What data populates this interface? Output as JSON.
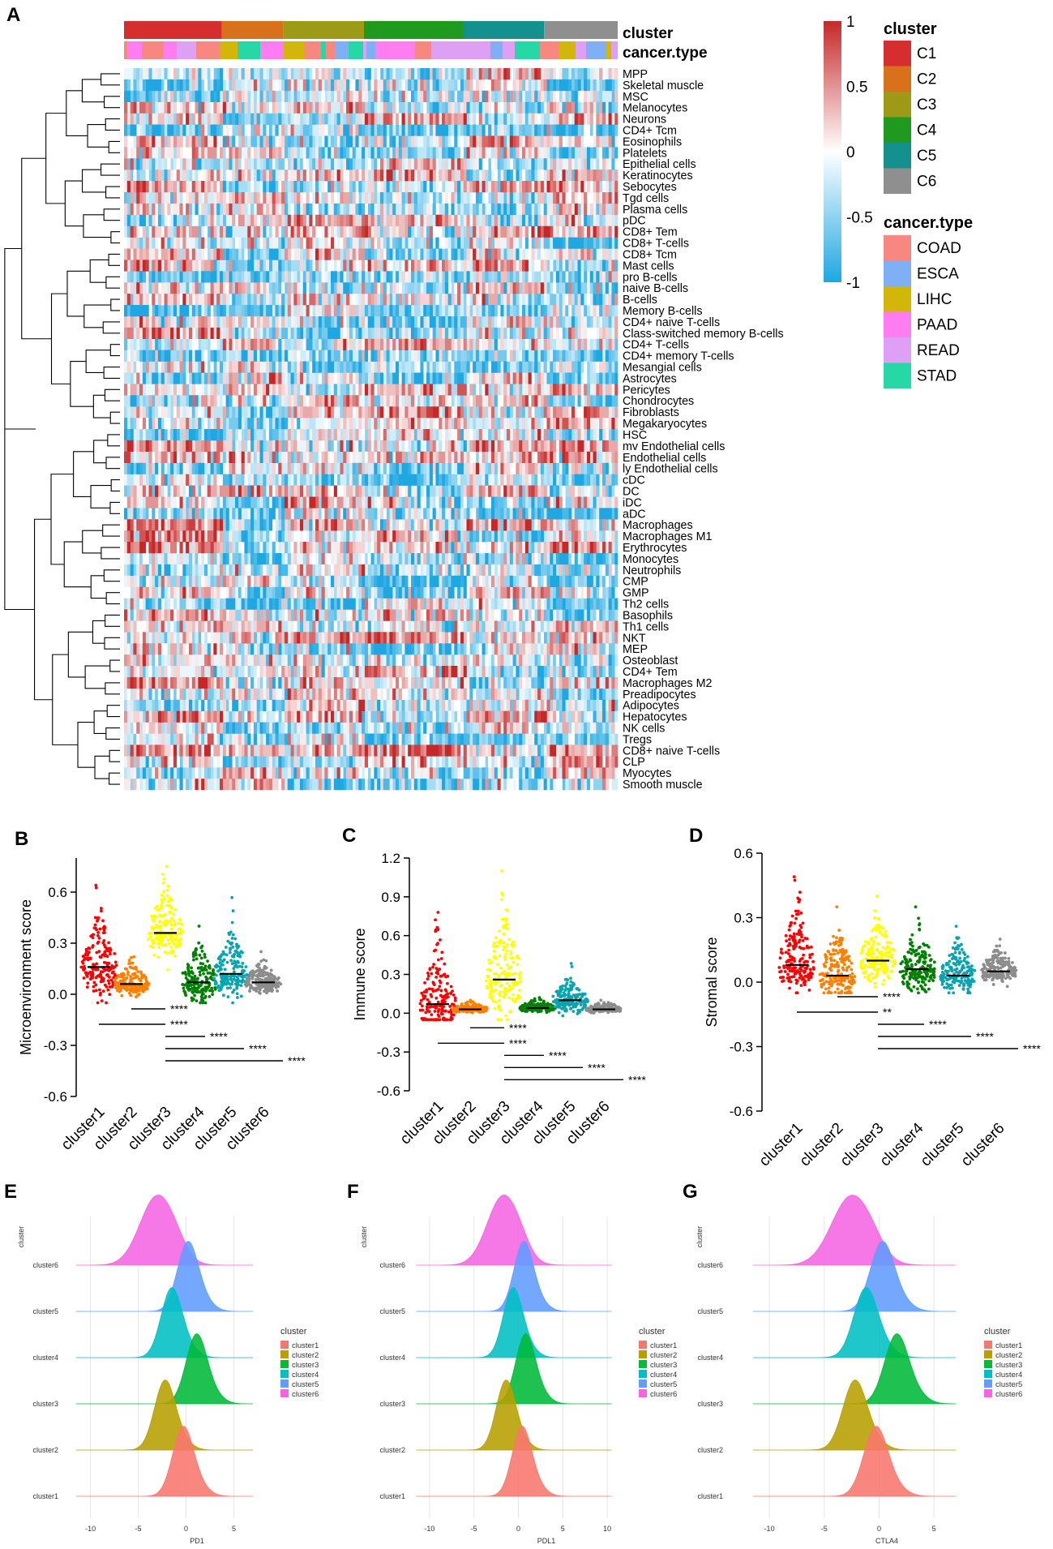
{
  "panel_letters": [
    "A",
    "B",
    "C",
    "D",
    "E",
    "F",
    "G"
  ],
  "heatmap": {
    "annotation_titles": {
      "cluster": "cluster",
      "cancer_type": "cancer.type"
    },
    "colorbar_ticks": [
      "1",
      "0.5",
      "0",
      "-0.5",
      "-1"
    ],
    "colorbar_values": [
      1,
      0.5,
      0,
      -0.5,
      -1
    ],
    "colors": {
      "high": "#c62828",
      "mid": "#ffffff",
      "low": "#1ea7e1"
    },
    "clusters": [
      {
        "name": "C1",
        "color": "#d62e2e",
        "share": 0.198
      },
      {
        "name": "C2",
        "color": "#d8711c",
        "share": 0.124
      },
      {
        "name": "C3",
        "color": "#9c9a17",
        "share": 0.164
      },
      {
        "name": "C4",
        "color": "#1f9a1f",
        "share": 0.202
      },
      {
        "name": "C5",
        "color": "#14908f",
        "share": 0.163
      },
      {
        "name": "C6",
        "color": "#8f8f8f",
        "share": 0.149
      }
    ],
    "cancer_types": [
      {
        "name": "COAD",
        "color": "#f8877f"
      },
      {
        "name": "ESCA",
        "color": "#7fb0f6"
      },
      {
        "name": "LIHC",
        "color": "#d3b60a"
      },
      {
        "name": "PAAD",
        "color": "#ff7df0"
      },
      {
        "name": "READ",
        "color": "#dda0f5"
      },
      {
        "name": "STAD",
        "color": "#25d8a6"
      }
    ],
    "rows": [
      "MPP",
      "Skeletal muscle",
      "MSC",
      "Melanocytes",
      "Neurons",
      "CD4+ Tcm",
      "Eosinophils",
      "Platelets",
      "Epithelial cells",
      "Keratinocytes",
      "Sebocytes",
      "Tgd cells",
      "Plasma cells",
      "pDC",
      "CD8+ Tem",
      "CD8+ T-cells",
      "CD8+ Tcm",
      "Mast cells",
      "pro B-cells",
      "naive B-cells",
      "B-cells",
      "Memory B-cells",
      "CD4+ naive T-cells",
      "Class-switched memory B-cells",
      "CD4+ T-cells",
      "CD4+ memory T-cells",
      "Mesangial cells",
      "Astrocytes",
      "Pericytes",
      "Chondrocytes",
      "Fibroblasts",
      "Megakaryocytes",
      "HSC",
      "mv Endothelial cells",
      "Endothelial cells",
      "ly Endothelial cells",
      "cDC",
      "DC",
      "iDC",
      "aDC",
      "Macrophages",
      "Macrophages M1",
      "Erythrocytes",
      "Monocytes",
      "Neutrophils",
      "CMP",
      "GMP",
      "Th2 cells",
      "Basophils",
      "Th1 cells",
      "NKT",
      "MEP",
      "Osteoblast",
      "CD4+ Tem",
      "Macrophages M2",
      "Preadipocytes",
      "Adipocytes",
      "Hepatocytes",
      "NK cells",
      "Tregs",
      "CD8+ naive T-cells",
      "CLP",
      "Myocytes",
      "Smooth muscle"
    ]
  },
  "scatter_panels": [
    {
      "letter": "B",
      "ylabel": "Microenvironment score",
      "ylim": [
        -0.6,
        0.8
      ],
      "yticks": [
        "0.6",
        "0.3",
        "0.0",
        "-0.3",
        "-0.6"
      ],
      "ytick_values": [
        0.6,
        0.3,
        0.0,
        -0.3,
        -0.6
      ],
      "categories": [
        "cluster1",
        "cluster2",
        "cluster3",
        "cluster4",
        "cluster5",
        "cluster6"
      ],
      "medians": [
        0.16,
        0.06,
        0.36,
        0.07,
        0.12,
        0.07
      ],
      "maxima": [
        0.64,
        0.22,
        0.75,
        0.4,
        0.49,
        0.25
      ],
      "colors": [
        "#ff0000",
        "#ff7f00",
        "#ffff00",
        "#008000",
        "#0aa3b0",
        "#8c8c8c"
      ],
      "comparisons": [
        {
          "groups": [
            "cluster2",
            "cluster3"
          ],
          "sig": "****"
        },
        {
          "groups": [
            "cluster1",
            "cluster3"
          ],
          "sig": "****"
        },
        {
          "groups": [
            "cluster3",
            "cluster4"
          ],
          "sig": "****"
        },
        {
          "groups": [
            "cluster3",
            "cluster5"
          ],
          "sig": "****"
        },
        {
          "groups": [
            "cluster3",
            "cluster6"
          ],
          "sig": "****"
        }
      ]
    },
    {
      "letter": "C",
      "ylabel": "Immune score",
      "ylim": [
        -0.6,
        1.2
      ],
      "yticks": [
        "1.2",
        "0.9",
        "0.6",
        "0.3",
        "0.0",
        "-0.3",
        "-0.6"
      ],
      "ytick_values": [
        1.2,
        0.9,
        0.6,
        0.3,
        0.0,
        -0.3,
        -0.6
      ],
      "categories": [
        "cluster1",
        "cluster2",
        "cluster3",
        "cluster4",
        "cluster5",
        "cluster6"
      ],
      "medians": [
        0.07,
        0.03,
        0.26,
        0.04,
        0.1,
        0.03
      ],
      "maxima": [
        0.78,
        0.1,
        1.1,
        0.12,
        0.36,
        0.1
      ],
      "colors": [
        "#ff0000",
        "#ff7f00",
        "#ffff00",
        "#008000",
        "#0aa3b0",
        "#8c8c8c"
      ],
      "comparisons": [
        {
          "groups": [
            "cluster2",
            "cluster3"
          ],
          "sig": "****"
        },
        {
          "groups": [
            "cluster1",
            "cluster3"
          ],
          "sig": "****"
        },
        {
          "groups": [
            "cluster3",
            "cluster4"
          ],
          "sig": "****"
        },
        {
          "groups": [
            "cluster3",
            "cluster5"
          ],
          "sig": "****"
        },
        {
          "groups": [
            "cluster3",
            "cluster6"
          ],
          "sig": "****"
        }
      ]
    },
    {
      "letter": "D",
      "ylabel": "Stromal score",
      "ylim": [
        -0.6,
        0.6
      ],
      "yticks": [
        "0.6",
        "0.3",
        "0.0",
        "-0.3",
        "-0.6"
      ],
      "ytick_values": [
        0.6,
        0.3,
        0.0,
        -0.3,
        -0.6
      ],
      "categories": [
        "cluster1",
        "cluster2",
        "cluster3",
        "cluster4",
        "cluster5",
        "cluster6"
      ],
      "medians": [
        0.08,
        0.03,
        0.1,
        0.06,
        0.03,
        0.05
      ],
      "maxima": [
        0.49,
        0.35,
        0.4,
        0.35,
        0.26,
        0.2
      ],
      "colors": [
        "#ff0000",
        "#ff7f00",
        "#ffff00",
        "#008000",
        "#0aa3b0",
        "#8c8c8c"
      ],
      "comparisons": [
        {
          "groups": [
            "cluster2",
            "cluster3"
          ],
          "sig": "****"
        },
        {
          "groups": [
            "cluster1",
            "cluster3"
          ],
          "sig": "**"
        },
        {
          "groups": [
            "cluster3",
            "cluster4"
          ],
          "sig": "****"
        },
        {
          "groups": [
            "cluster3",
            "cluster5"
          ],
          "sig": "****"
        },
        {
          "groups": [
            "cluster3",
            "cluster6"
          ],
          "sig": "****"
        }
      ]
    }
  ],
  "ridge_panels": [
    {
      "letter": "E",
      "xlabel": "PD1",
      "xticks": [
        "-10",
        "-5",
        "0",
        "5"
      ],
      "xtick_values": [
        -10,
        -5,
        0,
        5
      ],
      "xlim": [
        -12,
        7.5
      ],
      "peaks": [
        -3,
        0.2,
        -1.5,
        1.1,
        -2.2,
        -0.3
      ]
    },
    {
      "letter": "F",
      "xlabel": "PDL1",
      "xticks": [
        "-10",
        "-5",
        "0",
        "5",
        "10"
      ],
      "xtick_values": [
        -10,
        -5,
        0,
        5,
        10
      ],
      "xlim": [
        -12,
        11
      ],
      "peaks": [
        -1.7,
        0.6,
        -0.6,
        0.8,
        -1.4,
        0.4
      ]
    },
    {
      "letter": "G",
      "xlabel": "CTLA4",
      "xticks": [
        "-10",
        "-5",
        "0",
        "5"
      ],
      "xtick_values": [
        -10,
        -5,
        0,
        5
      ],
      "xlim": [
        -12,
        7.5
      ],
      "peaks": [
        -2.5,
        0.3,
        -1.2,
        1.6,
        -2.2,
        -0.3
      ]
    }
  ],
  "ridge_common": {
    "ylabel": "cluster",
    "rows": [
      "cluster6",
      "cluster5",
      "cluster4",
      "cluster3",
      "cluster2",
      "cluster1"
    ],
    "legend_title": "cluster",
    "legend": [
      "cluster1",
      "cluster2",
      "cluster3",
      "cluster4",
      "cluster5",
      "cluster6"
    ],
    "colors": [
      "#f8766d",
      "#b79f00",
      "#00ba38",
      "#00bfc4",
      "#619cff",
      "#f564e3"
    ]
  },
  "chart_data": [
    {
      "type": "heatmap",
      "title": "",
      "color_range": [
        -1,
        1
      ],
      "row_labels_ref": "heatmap.rows",
      "column_groups": [
        "C1",
        "C2",
        "C3",
        "C4",
        "C5",
        "C6"
      ]
    },
    {
      "type": "scatter",
      "title": "",
      "ylabel": "Microenvironment score",
      "categories": [
        "cluster1",
        "cluster2",
        "cluster3",
        "cluster4",
        "cluster5",
        "cluster6"
      ],
      "medians": [
        0.16,
        0.06,
        0.36,
        0.07,
        0.12,
        0.07
      ],
      "ylim": [
        -0.6,
        0.8
      ]
    },
    {
      "type": "scatter",
      "title": "",
      "ylabel": "Immune score",
      "categories": [
        "cluster1",
        "cluster2",
        "cluster3",
        "cluster4",
        "cluster5",
        "cluster6"
      ],
      "medians": [
        0.07,
        0.03,
        0.26,
        0.04,
        0.1,
        0.03
      ],
      "ylim": [
        -0.6,
        1.2
      ]
    },
    {
      "type": "scatter",
      "title": "",
      "ylabel": "Stromal score",
      "categories": [
        "cluster1",
        "cluster2",
        "cluster3",
        "cluster4",
        "cluster5",
        "cluster6"
      ],
      "medians": [
        0.08,
        0.03,
        0.1,
        0.06,
        0.03,
        0.05
      ],
      "ylim": [
        -0.6,
        0.6
      ]
    },
    {
      "type": "area",
      "title": "",
      "xlabel": "PD1",
      "series_peaks": {
        "cluster1": -0.3,
        "cluster2": -2.2,
        "cluster3": 1.1,
        "cluster4": -1.5,
        "cluster5": 0.2,
        "cluster6": -3
      }
    },
    {
      "type": "area",
      "title": "",
      "xlabel": "PDL1",
      "series_peaks": {
        "cluster1": 0.4,
        "cluster2": -1.4,
        "cluster3": 0.8,
        "cluster4": -0.6,
        "cluster5": 0.6,
        "cluster6": -1.7
      }
    },
    {
      "type": "area",
      "title": "",
      "xlabel": "CTLA4",
      "series_peaks": {
        "cluster1": -0.3,
        "cluster2": -2.2,
        "cluster3": 1.6,
        "cluster4": -1.2,
        "cluster5": 0.3,
        "cluster6": -2.5
      }
    }
  ]
}
